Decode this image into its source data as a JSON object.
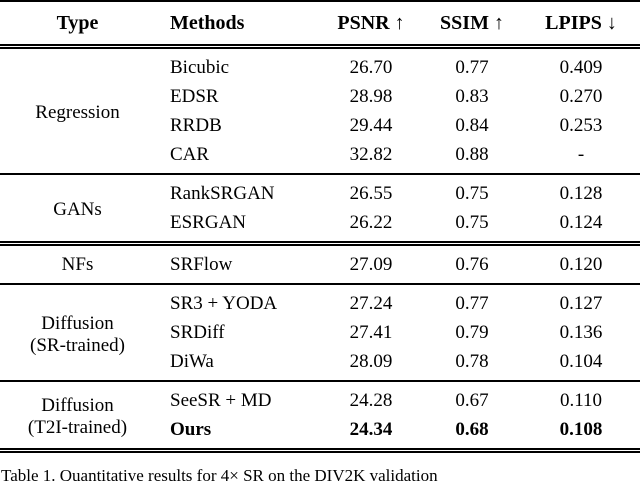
{
  "table": {
    "headers": [
      {
        "label": "Type",
        "arrow": ""
      },
      {
        "label": "Methods",
        "arrow": ""
      },
      {
        "label": "PSNR",
        "arrow": "↑"
      },
      {
        "label": "SSIM",
        "arrow": "↑"
      },
      {
        "label": "LPIPS",
        "arrow": "↓"
      }
    ],
    "sections": [
      {
        "type_line1": "Regression",
        "type_line2": "",
        "rows": [
          {
            "method": "Bicubic",
            "psnr": "26.70",
            "ssim": "0.77",
            "lpips": "0.409"
          },
          {
            "method": "EDSR",
            "psnr": "28.98",
            "ssim": "0.83",
            "lpips": "0.270"
          },
          {
            "method": "RRDB",
            "psnr": "29.44",
            "ssim": "0.84",
            "lpips": "0.253"
          },
          {
            "method": "CAR",
            "psnr": "32.82",
            "ssim": "0.88",
            "lpips": "-"
          }
        ]
      },
      {
        "type_line1": "GANs",
        "type_line2": "",
        "rows": [
          {
            "method": "RankSRGAN",
            "psnr": "26.55",
            "ssim": "0.75",
            "lpips": "0.128"
          },
          {
            "method": "ESRGAN",
            "psnr": "26.22",
            "ssim": "0.75",
            "lpips": "0.124"
          }
        ]
      },
      {
        "type_line1": "NFs",
        "type_line2": "",
        "rows": [
          {
            "method": "SRFlow",
            "psnr": "27.09",
            "ssim": "0.76",
            "lpips": "0.120"
          }
        ]
      },
      {
        "type_line1": "Diffusion",
        "type_line2": "(SR-trained)",
        "rows": [
          {
            "method": "SR3 + YODA",
            "psnr": "27.24",
            "ssim": "0.77",
            "lpips": "0.127"
          },
          {
            "method": "SRDiff",
            "psnr": "27.41",
            "ssim": "0.79",
            "lpips": "0.136"
          },
          {
            "method": "DiWa",
            "psnr": "28.09",
            "ssim": "0.78",
            "lpips": "0.104"
          }
        ]
      },
      {
        "type_line1": "Diffusion",
        "type_line2": "(T2I-trained)",
        "rows": [
          {
            "method": "SeeSR + MD",
            "psnr": "24.28",
            "ssim": "0.67",
            "lpips": "0.110"
          },
          {
            "method": "Ours",
            "psnr": "24.34",
            "ssim": "0.68",
            "lpips": "0.108"
          }
        ]
      }
    ]
  },
  "caption": "Table 1. Quantitative results for 4× SR on the DIV2K validation",
  "colors": {
    "text": "#000000",
    "background": "#ffffff"
  }
}
